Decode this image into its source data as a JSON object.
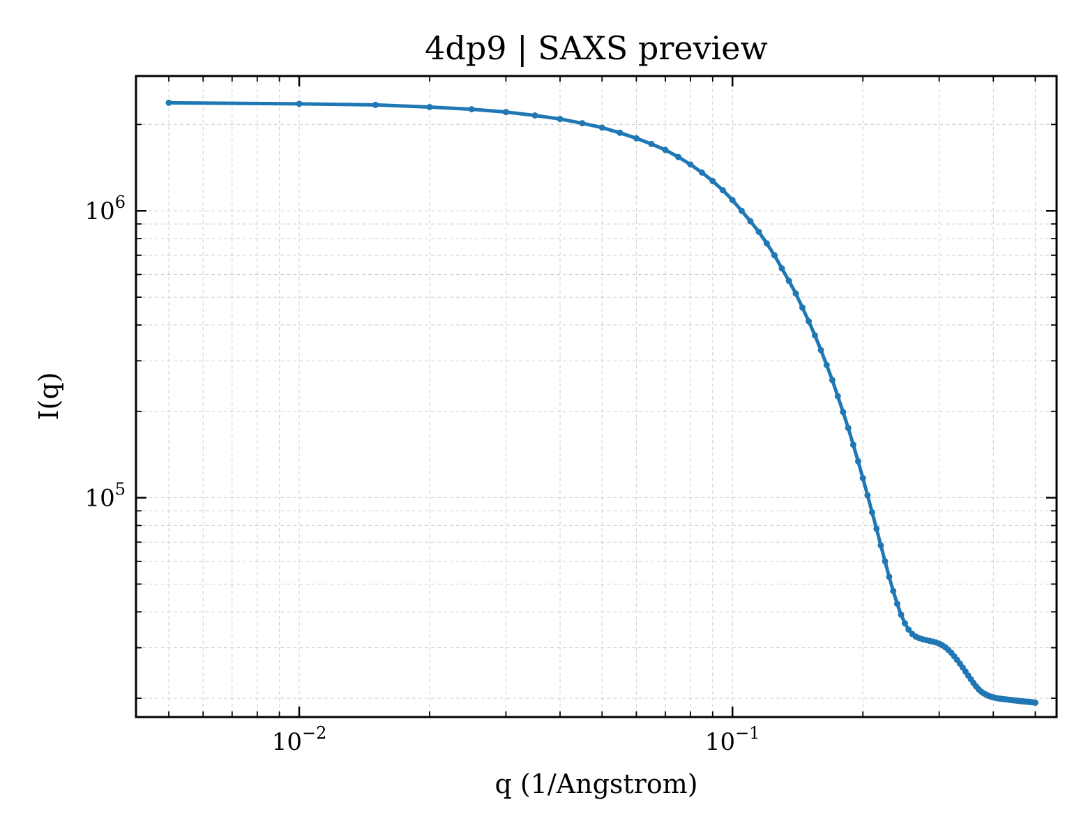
{
  "colors": {
    "series": "#1f77b4",
    "grid": "#cfcfcf",
    "frame": "#000000"
  },
  "chart_data": {
    "type": "line",
    "title": "4dp9 | SAXS preview",
    "xlabel": "q (1/Angstrom)",
    "ylabel": "I(q)",
    "xscale": "log",
    "yscale": "log",
    "xlim": [
      0.0042,
      0.56
    ],
    "ylim": [
      17200,
      2950000
    ],
    "grid": true,
    "legend": "none",
    "x_ticks": [
      {
        "value": 0.01,
        "base": "10",
        "exp": "−2"
      },
      {
        "value": 0.1,
        "base": "10",
        "exp": "−1"
      }
    ],
    "y_ticks": [
      {
        "value": 100000,
        "base": "10",
        "exp": "5"
      },
      {
        "value": 1000000,
        "base": "10",
        "exp": "6"
      }
    ],
    "series": [
      {
        "marker": "circle",
        "x": [
          0.005,
          0.01,
          0.015,
          0.02,
          0.025,
          0.03,
          0.035,
          0.04,
          0.045,
          0.05,
          0.055,
          0.06,
          0.065,
          0.07,
          0.075,
          0.08,
          0.085,
          0.09,
          0.095,
          0.1,
          0.105,
          0.11,
          0.115,
          0.12,
          0.125,
          0.13,
          0.135,
          0.14,
          0.145,
          0.15,
          0.155,
          0.16,
          0.165,
          0.17,
          0.175,
          0.18,
          0.185,
          0.19,
          0.195,
          0.2,
          0.205,
          0.21,
          0.215,
          0.22,
          0.225,
          0.23,
          0.235,
          0.24,
          0.245,
          0.25,
          0.255,
          0.26,
          0.265,
          0.27,
          0.275,
          0.28,
          0.285,
          0.29,
          0.295,
          0.3,
          0.305,
          0.31,
          0.315,
          0.32,
          0.325,
          0.33,
          0.335,
          0.34,
          0.345,
          0.35,
          0.355,
          0.36,
          0.365,
          0.37,
          0.375,
          0.38,
          0.385,
          0.39,
          0.395,
          0.4,
          0.405,
          0.41,
          0.415,
          0.42,
          0.425,
          0.43,
          0.435,
          0.44,
          0.445,
          0.45,
          0.455,
          0.46,
          0.465,
          0.47,
          0.475,
          0.48,
          0.485,
          0.49,
          0.495,
          0.5
        ],
        "y": [
          2380000,
          2360000,
          2340000,
          2300000,
          2260000,
          2210000,
          2150000,
          2090000,
          2020000,
          1950000,
          1870000,
          1790000,
          1710000,
          1630000,
          1540000,
          1450000,
          1360000,
          1270000,
          1180000,
          1090000,
          1000000,
          920000,
          845000,
          770000,
          700000,
          630000,
          570000,
          515000,
          460000,
          412000,
          368000,
          327000,
          290000,
          257000,
          226000,
          199000,
          175000,
          153000,
          134000,
          117000,
          102000,
          89000,
          78000,
          68200,
          60000,
          53000,
          47300,
          42700,
          39100,
          36500,
          34700,
          33500,
          32800,
          32400,
          32100,
          31900,
          31700,
          31500,
          31300,
          31000,
          30600,
          30100,
          29500,
          28800,
          28000,
          27200,
          26400,
          25600,
          24800,
          24000,
          23300,
          22600,
          22000,
          21500,
          21100,
          20800,
          20600,
          20400,
          20250,
          20150,
          20050,
          19980,
          19920,
          19880,
          19840,
          19800,
          19760,
          19720,
          19680,
          19640,
          19600,
          19560,
          19530,
          19500,
          19470,
          19440,
          19410,
          19380,
          19350,
          19300
        ]
      }
    ]
  }
}
